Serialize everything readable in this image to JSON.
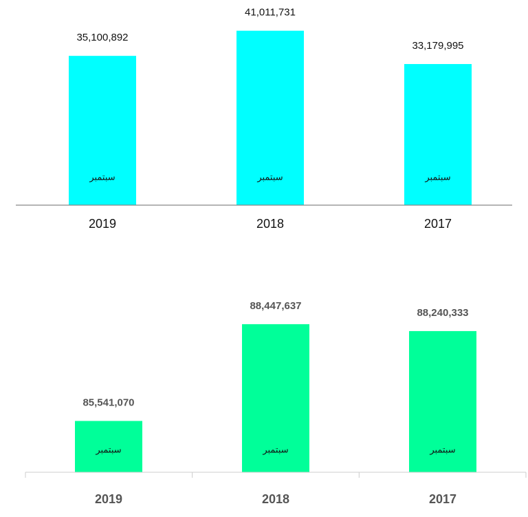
{
  "chart_data": [
    {
      "type": "bar",
      "categories": [
        "2019",
        "2018",
        "2017"
      ],
      "values": [
        35100892,
        41011731,
        33179995
      ],
      "value_labels": [
        "35,100,892",
        "41,011,731",
        "33,179,995"
      ],
      "bar_labels": [
        "سبتمبر",
        "سبتمبر",
        "سبتمبر"
      ],
      "color": "#00ffff",
      "ylim": [
        0,
        45000000
      ]
    },
    {
      "type": "bar",
      "categories": [
        "2019",
        "2018",
        "2017"
      ],
      "values": [
        85541070,
        88447637,
        88240333
      ],
      "value_labels": [
        "85,541,070",
        "88,447,637",
        "88,240,333"
      ],
      "bar_labels": [
        "سبتمبر",
        "سبتمبر",
        "سبتمبر"
      ],
      "color": "#00ff99",
      "ylim": [
        84000000,
        89500000
      ]
    }
  ]
}
